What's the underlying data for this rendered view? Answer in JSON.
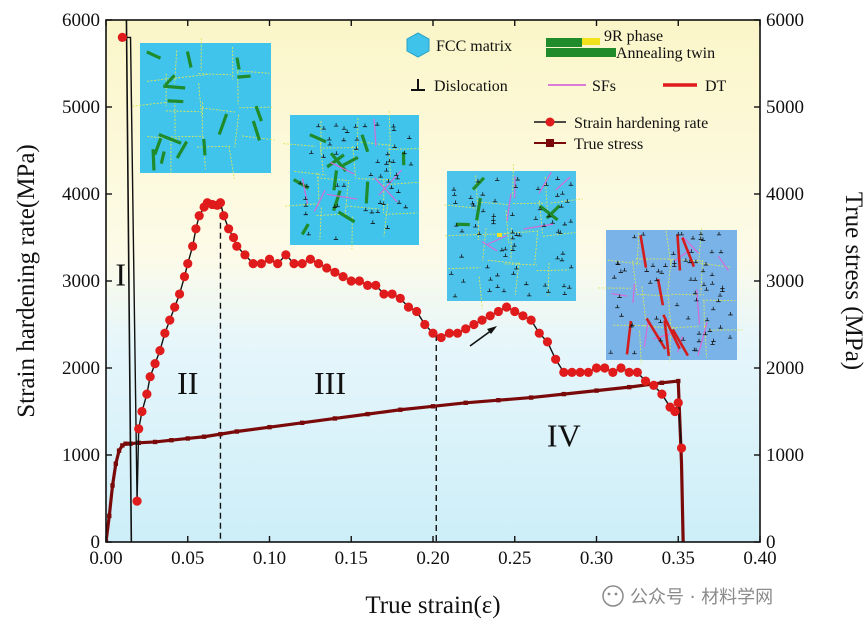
{
  "chart_data": {
    "type": "line",
    "xlabel": "True strain(ε)",
    "ylabel_left": "Strain hardening rate(MPa)",
    "ylabel_right": "True stress (MPa)",
    "xlim": [
      0,
      0.4
    ],
    "ylim_left": [
      0,
      6000
    ],
    "ylim_right": [
      0,
      6000
    ],
    "x_ticks": [
      "0.00",
      "0.05",
      "0.10",
      "0.15",
      "0.20",
      "0.25",
      "0.30",
      "0.35",
      "0.40"
    ],
    "y_ticks": [
      "0",
      "1000",
      "2000",
      "3000",
      "4000",
      "5000",
      "6000"
    ],
    "background": {
      "top_color": "#fbf6c8",
      "bottom_color": "#cdeef8"
    },
    "stages": [
      {
        "label": "I",
        "x": 0.009,
        "y": 2950
      },
      {
        "label": "II",
        "x": 0.05,
        "y": 1700
      },
      {
        "label": "III",
        "x": 0.137,
        "y": 1700
      },
      {
        "label": "IV",
        "x": 0.28,
        "y": 1100
      }
    ],
    "dividers": [
      0.07,
      0.202
    ],
    "series": [
      {
        "name": "Strain hardening rate",
        "color": "#e01b1b",
        "line_color": "#111111",
        "x": [
          0.01,
          0.015,
          0.019,
          0.02,
          0.022,
          0.025,
          0.027,
          0.03,
          0.033,
          0.036,
          0.039,
          0.042,
          0.045,
          0.048,
          0.05,
          0.053,
          0.055,
          0.057,
          0.06,
          0.062,
          0.065,
          0.068,
          0.07,
          0.072,
          0.075,
          0.078,
          0.08,
          0.085,
          0.09,
          0.095,
          0.1,
          0.105,
          0.11,
          0.115,
          0.12,
          0.125,
          0.13,
          0.135,
          0.14,
          0.145,
          0.15,
          0.155,
          0.16,
          0.165,
          0.17,
          0.175,
          0.18,
          0.185,
          0.19,
          0.195,
          0.2,
          0.205,
          0.21,
          0.215,
          0.22,
          0.225,
          0.23,
          0.235,
          0.24,
          0.245,
          0.25,
          0.255,
          0.26,
          0.265,
          0.27,
          0.275,
          0.28,
          0.285,
          0.29,
          0.295,
          0.3,
          0.305,
          0.31,
          0.315,
          0.32,
          0.325,
          0.33,
          0.335,
          0.34,
          0.345,
          0.348,
          0.35,
          0.352
        ],
        "y": [
          5800,
          5800,
          470,
          1300,
          1500,
          1700,
          1900,
          2050,
          2200,
          2400,
          2550,
          2700,
          2850,
          3050,
          3200,
          3400,
          3600,
          3750,
          3850,
          3900,
          3880,
          3870,
          3900,
          3750,
          3600,
          3500,
          3400,
          3300,
          3200,
          3200,
          3250,
          3200,
          3300,
          3200,
          3200,
          3250,
          3200,
          3150,
          3100,
          3050,
          3000,
          3000,
          2950,
          2950,
          2850,
          2850,
          2800,
          2700,
          2650,
          2500,
          2400,
          2350,
          2400,
          2400,
          2450,
          2500,
          2550,
          2600,
          2650,
          2700,
          2650,
          2600,
          2550,
          2400,
          2300,
          2100,
          1950,
          1950,
          1950,
          1950,
          2000,
          2000,
          1950,
          2000,
          1950,
          1950,
          1850,
          1800,
          1700,
          1550,
          1500,
          1600,
          1080
        ]
      },
      {
        "name": "True stress",
        "color": "#7a0a0a",
        "x": [
          0.0,
          0.002,
          0.004,
          0.006,
          0.008,
          0.01,
          0.012,
          0.015,
          0.02,
          0.03,
          0.04,
          0.05,
          0.06,
          0.07,
          0.08,
          0.1,
          0.12,
          0.14,
          0.16,
          0.18,
          0.2,
          0.22,
          0.24,
          0.26,
          0.28,
          0.3,
          0.32,
          0.34,
          0.35,
          0.352,
          0.353
        ],
        "y": [
          0,
          300,
          650,
          900,
          1050,
          1110,
          1130,
          1130,
          1140,
          1150,
          1170,
          1190,
          1210,
          1240,
          1270,
          1320,
          1370,
          1420,
          1470,
          1520,
          1560,
          1600,
          1630,
          1660,
          1700,
          1740,
          1780,
          1830,
          1850,
          900,
          0
        ]
      }
    ],
    "legend": {
      "fcc": "FCC matrix",
      "phase9r": "9R phase",
      "twin": "Annealing twin",
      "dislocation": "Dislocation",
      "sfs": "SFs",
      "dt": "DT",
      "series1": "Strain hardening rate",
      "series2": "True stress"
    },
    "insets": [
      {
        "name": "inset-1",
        "features": [
          "twins"
        ]
      },
      {
        "name": "inset-2",
        "features": [
          "twins",
          "dislocations",
          "sfs"
        ]
      },
      {
        "name": "inset-3",
        "features": [
          "dislocations",
          "sfs",
          "twins",
          "9r"
        ]
      },
      {
        "name": "inset-4",
        "features": [
          "dislocations",
          "sfs",
          "dt"
        ]
      }
    ]
  },
  "watermark": "公众号 · 材料学网"
}
